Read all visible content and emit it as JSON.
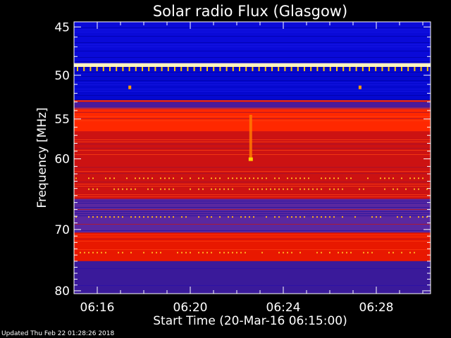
{
  "chart_data": {
    "type": "heatmap",
    "title": "Solar radio Flux (Glasgow)",
    "xlabel": "Start Time (20-Mar-16 06:15:00)",
    "ylabel": "Frequency [MHz]",
    "x_range": [
      "06:15:00",
      "06:30:20"
    ],
    "y_range_mhz": [
      44.5,
      80.5
    ],
    "y_scale": "log",
    "x_ticks": [
      "06:16",
      "06:20",
      "06:24",
      "06:28"
    ],
    "x_tick_minutes": [
      16,
      20,
      24,
      28
    ],
    "y_ticks": [
      45,
      50,
      55,
      60,
      70,
      80
    ],
    "colormap": [
      "#0000cc",
      "#6a2fa8",
      "#cc1010",
      "#ff2a00",
      "#ffd200"
    ],
    "bands": [
      {
        "from": 44.5,
        "to": 48.7,
        "level": "low",
        "color": "#0a0ad8"
      },
      {
        "from": 48.7,
        "to": 49.1,
        "level": "saturated",
        "color": "#fff4c0"
      },
      {
        "from": 49.1,
        "to": 52.8,
        "level": "low",
        "color": "#0508d0"
      },
      {
        "from": 52.8,
        "to": 53.0,
        "level": "high",
        "color": "#ff3000"
      },
      {
        "from": 53.0,
        "to": 53.8,
        "level": "medium",
        "color": "#4a1a9a"
      },
      {
        "from": 53.8,
        "to": 56.5,
        "level": "high",
        "color": "#ff2800"
      },
      {
        "from": 56.5,
        "to": 65.5,
        "level": "medium-high",
        "color": "#cc1212"
      },
      {
        "from": 65.5,
        "to": 70.5,
        "level": "medium",
        "color": "#5a28a0"
      },
      {
        "from": 70.5,
        "to": 75.0,
        "level": "high",
        "color": "#e81800"
      },
      {
        "from": 75.0,
        "to": 80.5,
        "level": "low-medium",
        "color": "#3a1a9a"
      }
    ],
    "features": [
      {
        "type": "burst",
        "time_min": 22.6,
        "freq_from": 54.5,
        "freq_to": 60.0,
        "color": "#ff7a00"
      },
      {
        "type": "spot",
        "time_min": 17.4,
        "freq": 51.3,
        "color": "#ff9a00"
      },
      {
        "type": "spot",
        "time_min": 27.3,
        "freq": 51.3,
        "color": "#ff9a00"
      }
    ]
  },
  "footer": {
    "updated": "Updated Thu Feb 22 01:28:26 2018"
  }
}
